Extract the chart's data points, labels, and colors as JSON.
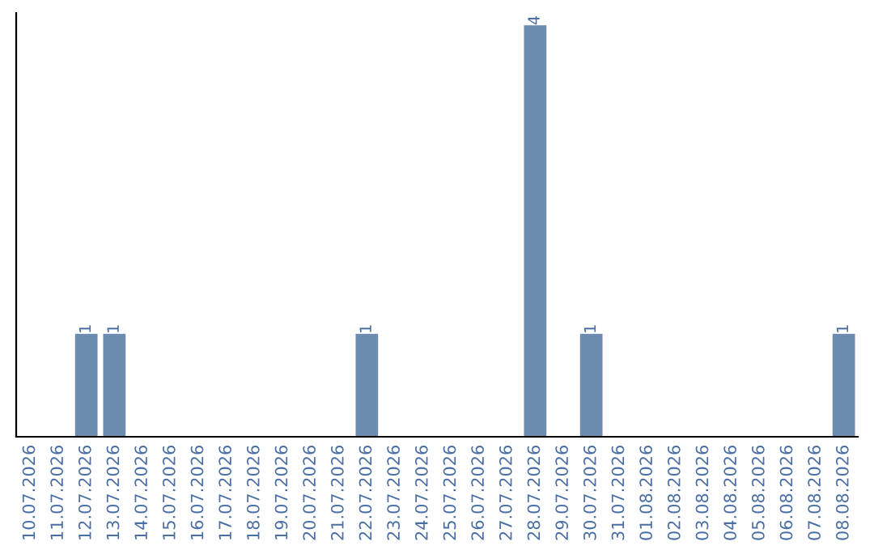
{
  "chart_data": {
    "type": "bar",
    "categories": [
      "10.07.2026",
      "11.07.2026",
      "12.07.2026",
      "13.07.2026",
      "14.07.2026",
      "15.07.2026",
      "16.07.2026",
      "17.07.2026",
      "18.07.2026",
      "19.07.2026",
      "20.07.2026",
      "21.07.2026",
      "22.07.2026",
      "23.07.2026",
      "24.07.2026",
      "25.07.2026",
      "26.07.2026",
      "27.07.2026",
      "28.07.2026",
      "29.07.2026",
      "30.07.2026",
      "31.07.2026",
      "01.08.2026",
      "02.08.2026",
      "03.08.2026",
      "04.08.2026",
      "05.08.2026",
      "06.08.2026",
      "07.08.2026",
      "08.08.2026"
    ],
    "values": [
      0,
      0,
      1,
      1,
      0,
      0,
      0,
      0,
      0,
      0,
      0,
      0,
      1,
      0,
      0,
      0,
      0,
      0,
      4,
      0,
      1,
      0,
      0,
      0,
      0,
      0,
      0,
      0,
      0,
      1
    ],
    "value_labels": [
      null,
      null,
      "1",
      "1",
      null,
      null,
      null,
      null,
      null,
      null,
      null,
      null,
      "1",
      null,
      null,
      null,
      null,
      null,
      "4",
      null,
      "1",
      null,
      null,
      null,
      null,
      null,
      null,
      null,
      null,
      "1"
    ],
    "color": "#6b8cae",
    "tick_labels": "x",
    "grid": false,
    "legend": false
  }
}
